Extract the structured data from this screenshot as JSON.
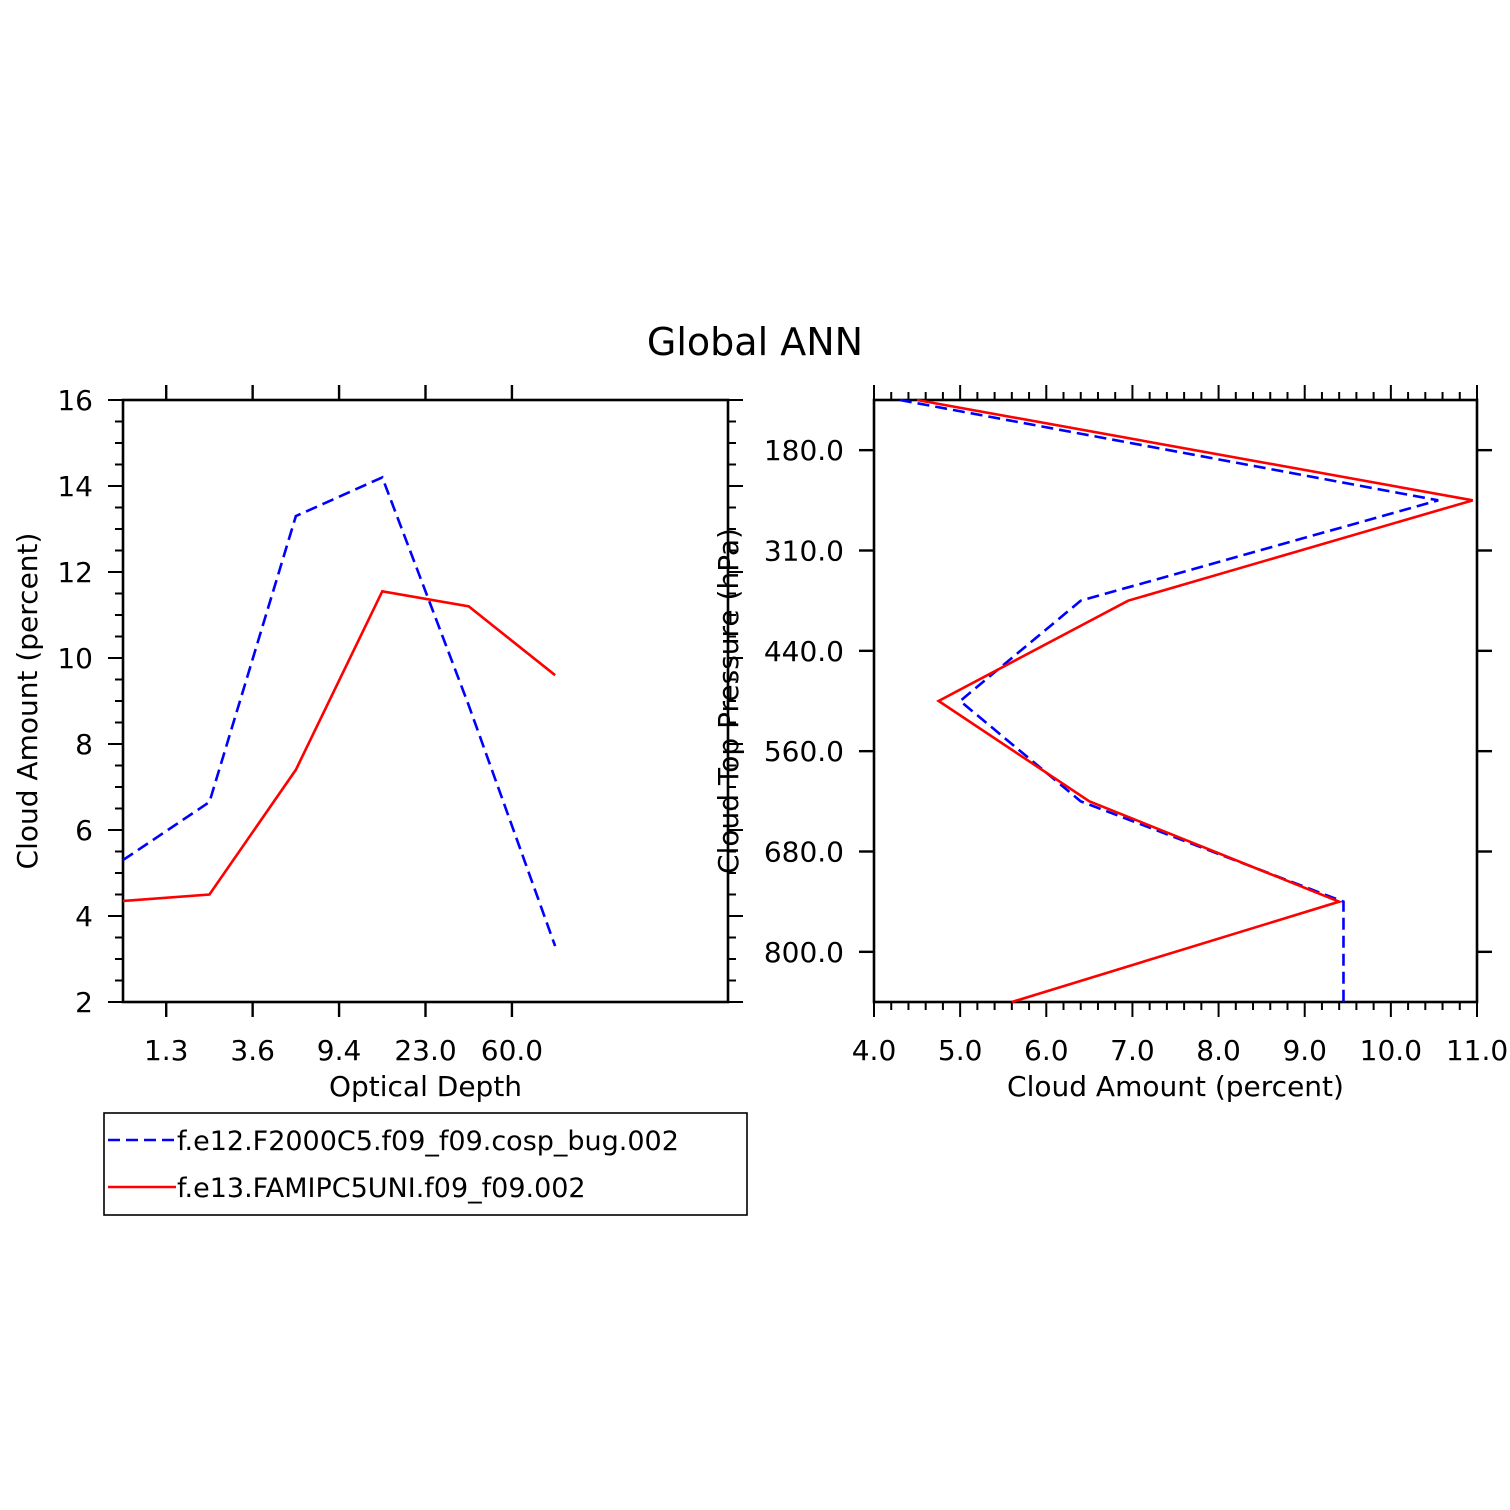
{
  "page": {
    "title": "Global ANN"
  },
  "chart_data": [
    {
      "type": "line",
      "xlabel": "Optical Depth",
      "ylabel": "Cloud Amount (percent)",
      "categories": [
        "1.3",
        "3.6",
        "9.4",
        "23.0",
        "60.0"
      ],
      "x_tick_labels": [
        "1.3",
        "3.6",
        "9.4",
        "23.0",
        "60.0"
      ],
      "y_tick_labels": [
        "2",
        "4",
        "6",
        "8",
        "10",
        "12",
        "14",
        "16"
      ],
      "ylim": [
        2,
        16
      ],
      "y_major_step": 2,
      "y_minor_step": 0.5,
      "x_bins": 7,
      "grid": false,
      "series": [
        {
          "name": "f.e12.F2000C5.f09_f09.cosp_bug.002",
          "color": "#0000ff",
          "dash": "dashed",
          "x": [
            0,
            1,
            2,
            3,
            4,
            5
          ],
          "values": [
            5.3,
            6.65,
            13.3,
            14.2,
            8.9,
            3.3
          ]
        },
        {
          "name": "f.e13.FAMIPC5UNI.f09_f09.002",
          "color": "#ff0000",
          "dash": "solid",
          "x": [
            0,
            1,
            2,
            3,
            4,
            5
          ],
          "values": [
            4.35,
            4.5,
            7.4,
            11.55,
            11.2,
            9.6
          ]
        }
      ]
    },
    {
      "type": "line",
      "orientation": "vertical-profile",
      "xlabel": "Cloud Amount (percent)",
      "ylabel": "Cloud Top Pressure (hPa)",
      "x_tick_labels": [
        "4.0",
        "5.0",
        "6.0",
        "7.0",
        "8.0",
        "9.0",
        "10.0",
        "11.0"
      ],
      "y_tick_labels": [
        "180.0",
        "310.0",
        "440.0",
        "560.0",
        "680.0",
        "800.0"
      ],
      "xlim": [
        4.0,
        11.0
      ],
      "x_minor_step": 0.2,
      "y_levels": 7,
      "grid": false,
      "series": [
        {
          "name": "f.e12.F2000C5.f09_f09.cosp_bug.002",
          "color": "#0000ff",
          "dash": "dashed",
          "level": [
            0,
            1,
            2,
            3,
            4,
            5,
            6
          ],
          "values": [
            4.3,
            10.55,
            6.4,
            5.0,
            6.4,
            9.45,
            9.45
          ]
        },
        {
          "name": "f.e13.FAMIPC5UNI.f09_f09.002",
          "color": "#ff0000",
          "dash": "solid",
          "level": [
            0,
            1,
            2,
            3,
            4,
            5,
            6
          ],
          "values": [
            4.5,
            10.95,
            6.95,
            4.75,
            6.5,
            9.4,
            5.6
          ]
        }
      ]
    }
  ]
}
